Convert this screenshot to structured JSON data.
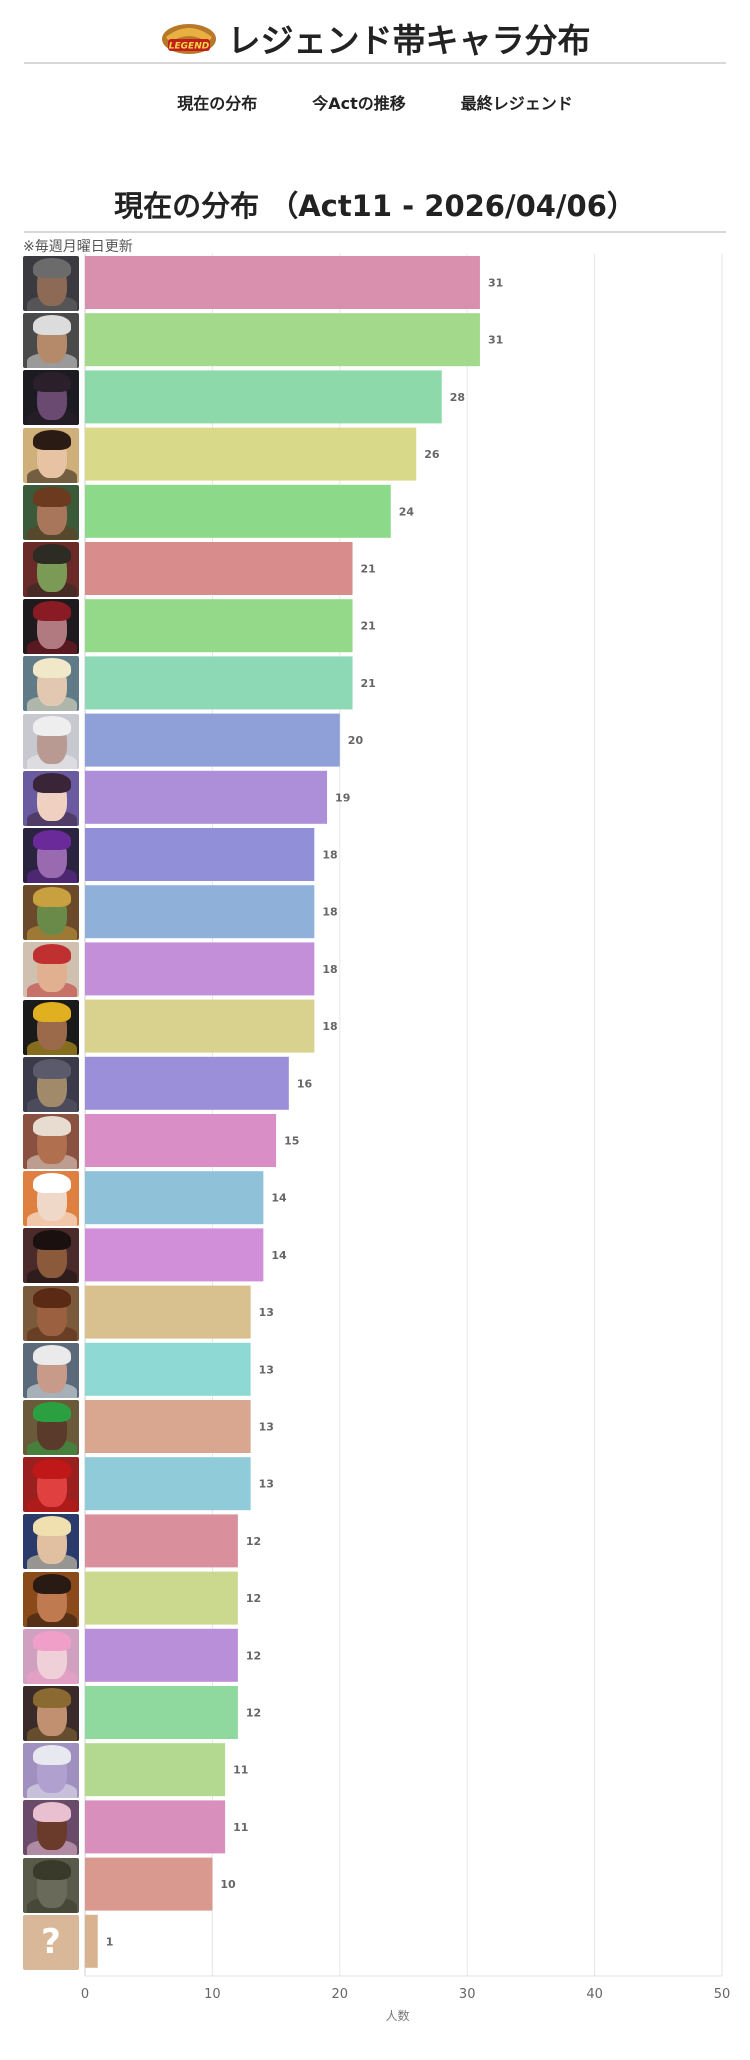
{
  "header": {
    "title": "レジェンド帯キャラ分布",
    "logo_text": "LEGEND"
  },
  "nav": [
    {
      "label": "現在の分布"
    },
    {
      "label": "今Actの推移"
    },
    {
      "label": "最終レジェンド"
    }
  ],
  "section": {
    "title": "現在の分布 （Act11 - 2026/04/06）",
    "note": "※毎週月曜日更新"
  },
  "chart_data": {
    "type": "bar",
    "orientation": "horizontal",
    "xlabel": "人数",
    "xlim": [
      0,
      50
    ],
    "xticks": [
      0,
      10,
      20,
      30,
      40,
      50
    ],
    "grid": true,
    "values": [
      31,
      31,
      28,
      26,
      24,
      21,
      21,
      21,
      20,
      19,
      18,
      18,
      18,
      18,
      16,
      15,
      14,
      14,
      13,
      13,
      13,
      13,
      12,
      12,
      12,
      12,
      11,
      11,
      10,
      1
    ],
    "colors": [
      "#d98fae",
      "#a2d98a",
      "#8dd9a9",
      "#d9d98a",
      "#8dd98a",
      "#d98c8c",
      "#94d98a",
      "#8dd9b6",
      "#8fa0d9",
      "#ad8fd9",
      "#928fd9",
      "#8fb0d9",
      "#c38fd9",
      "#d9d28f",
      "#9c8fd9",
      "#d98fc5",
      "#8fc1d9",
      "#d18fd9",
      "#d9c18f",
      "#8fd9d4",
      "#d9a78f",
      "#8fcbd9",
      "#d98f9c",
      "#cbd98f",
      "#b98fd9",
      "#8fd99e",
      "#b2d98f",
      "#d98fbb",
      "#d9998f",
      "#d9b38f"
    ],
    "avatars": [
      {
        "bg": "#3b3a40",
        "skin": "#8c6a55",
        "hair": "#6b6b6b"
      },
      {
        "bg": "#4a4a4a",
        "skin": "#b58a6a",
        "hair": "#dcdcdc"
      },
      {
        "bg": "#1d1b22",
        "skin": "#6a4a70",
        "hair": "#2a1f2a"
      },
      {
        "bg": "#cfb07a",
        "skin": "#e7c3a3",
        "hair": "#2a1c14"
      },
      {
        "bg": "#3a5a3a",
        "skin": "#a8765a",
        "hair": "#6b3a1f"
      },
      {
        "bg": "#6a2a28",
        "skin": "#7a9a55",
        "hair": "#2c2c24"
      },
      {
        "bg": "#1e1a1e",
        "skin": "#b07a80",
        "hair": "#8a1a24"
      },
      {
        "bg": "#607a88",
        "skin": "#e2c8b0",
        "hair": "#f0e8c8"
      },
      {
        "bg": "#c8c8d0",
        "skin": "#b89a92",
        "hair": "#eeeeee"
      },
      {
        "bg": "#6a5aa0",
        "skin": "#f0d0c0",
        "hair": "#3a2438"
      },
      {
        "bg": "#2a2440",
        "skin": "#9a6ab0",
        "hair": "#6a2a9a"
      },
      {
        "bg": "#6a4a2a",
        "skin": "#6a8a4a",
        "hair": "#c8a040"
      },
      {
        "bg": "#d0c0b0",
        "skin": "#e0b090",
        "hair": "#c03030"
      },
      {
        "bg": "#1a1a1a",
        "skin": "#9a6a4a",
        "hair": "#e0b020"
      },
      {
        "bg": "#3a3a4a",
        "skin": "#a08a6a",
        "hair": "#5a5a6a"
      },
      {
        "bg": "#8a5040",
        "skin": "#b07050",
        "hair": "#e8dcd0"
      },
      {
        "bg": "#e08040",
        "skin": "#f0d8c8",
        "hair": "#ffffff"
      },
      {
        "bg": "#4a2a2a",
        "skin": "#8a5a3a",
        "hair": "#1a1010"
      },
      {
        "bg": "#7a5a3a",
        "skin": "#9a6040",
        "hair": "#5a2a14"
      },
      {
        "bg": "#5a6a7a",
        "skin": "#c89a8a",
        "hair": "#eaeaea"
      },
      {
        "bg": "#6a5a3a",
        "skin": "#5a3a2a",
        "hair": "#2aa040"
      },
      {
        "bg": "#9a2020",
        "skin": "#e04040",
        "hair": "#c01818"
      },
      {
        "bg": "#2a3a6a",
        "skin": "#e0c0a0",
        "hair": "#f0e0b0"
      },
      {
        "bg": "#8a4a1a",
        "skin": "#c07a50",
        "hair": "#2a1a14"
      },
      {
        "bg": "#d0a0c0",
        "skin": "#f0d0d8",
        "hair": "#f0a0c8"
      },
      {
        "bg": "#3a2a2a",
        "skin": "#c09070",
        "hair": "#8a6a30"
      },
      {
        "bg": "#a090c0",
        "skin": "#b0a0d0",
        "hair": "#e8e8f0"
      },
      {
        "bg": "#6a4a6a",
        "skin": "#6a3a2a",
        "hair": "#e8c0d0"
      },
      {
        "bg": "#5a5a4a",
        "skin": "#6a6a5a",
        "hair": "#3a3a2a"
      },
      {
        "bg": "#d8b898",
        "skin": "#d8b898",
        "hair": "#d8b898",
        "unknown": true,
        "glyph": "?"
      }
    ]
  }
}
